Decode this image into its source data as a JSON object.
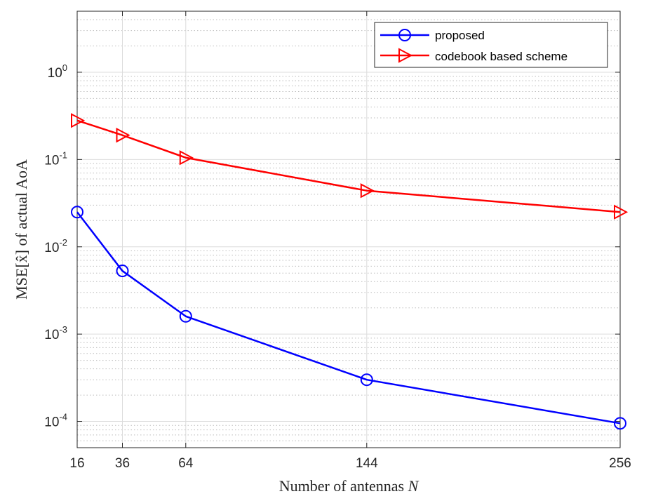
{
  "chart_data": {
    "type": "line",
    "title": "",
    "xlabel_prefix": "Number of antennas ",
    "xlabel_var": "N",
    "ylabel": "MSE[x̂] of actual AoA",
    "x": [
      16,
      36,
      64,
      144,
      256
    ],
    "x_tick_labels": [
      "16",
      "36",
      "64",
      "144",
      "256"
    ],
    "xlim": [
      16,
      256
    ],
    "yscale": "log",
    "ylim": [
      5e-05,
      5
    ],
    "y_ticks": [
      {
        "value": 1,
        "base": "10",
        "exp": "0"
      },
      {
        "value": 0.1,
        "base": "10",
        "exp": "-1"
      },
      {
        "value": 0.01,
        "base": "10",
        "exp": "-2"
      },
      {
        "value": 0.001,
        "base": "10",
        "exp": "-3"
      },
      {
        "value": 0.0001,
        "base": "10",
        "exp": "-4"
      }
    ],
    "grid": true,
    "legend_position": "top-right",
    "series": [
      {
        "name": "proposed",
        "values": [
          0.025,
          0.0053,
          0.0016,
          0.0003,
          9.5e-05
        ],
        "color": "#0000ff",
        "marker": "circle"
      },
      {
        "name": "codebook based scheme",
        "values": [
          0.28,
          0.19,
          0.105,
          0.044,
          0.025
        ],
        "color": "#ff0000",
        "marker": "triangle-right"
      }
    ]
  }
}
